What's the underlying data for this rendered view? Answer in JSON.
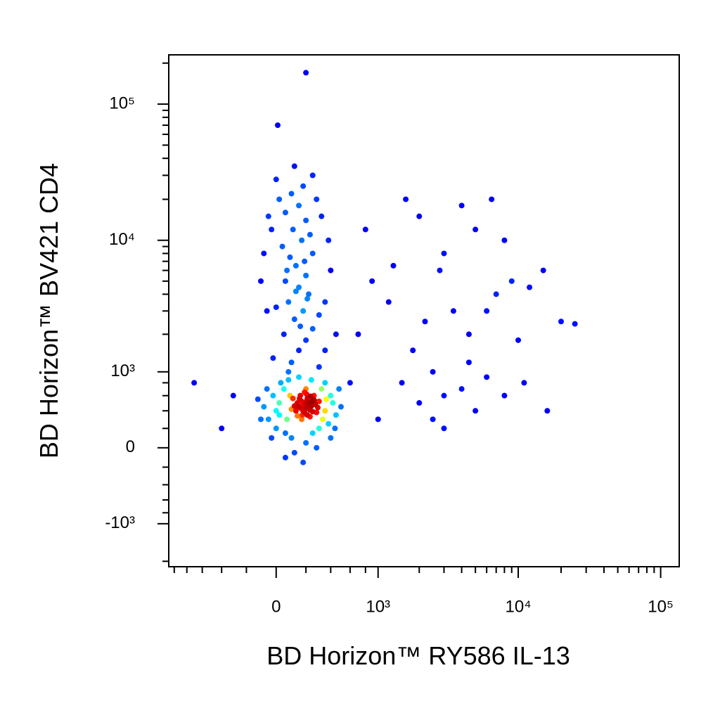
{
  "chart_data": {
    "type": "scatter",
    "x_label": "BD Horizon™ RY586 IL-13",
    "y_label": "BD Horizon™ BV421 CD4",
    "xscale": "biexponential",
    "yscale": "biexponential",
    "colormap": "jet",
    "xlim": [
      -1100,
      135000
    ],
    "ylim": [
      -2200,
      230000
    ],
    "xticks": [
      0,
      {
        "value": 1000,
        "label": "10³"
      },
      {
        "value": 10000,
        "label": "10⁴"
      },
      {
        "value": 100000,
        "label": "10⁵"
      }
    ],
    "yticks": [
      {
        "value": -1000,
        "label": "-10³"
      },
      0,
      {
        "value": 1000,
        "label": "10³"
      },
      {
        "value": 10000,
        "label": "10⁴"
      },
      {
        "value": 100000,
        "label": "10⁵"
      }
    ],
    "xminorticks": [
      -1000,
      -800,
      -600,
      -400,
      -200,
      200,
      400,
      600,
      800,
      2000,
      3000,
      4000,
      5000,
      6000,
      7000,
      8000,
      9000,
      20000,
      30000,
      40000,
      50000,
      60000,
      70000,
      80000,
      90000
    ],
    "yminorticks": [
      -2000,
      -800,
      -600,
      -400,
      -200,
      200,
      400,
      600,
      800,
      2000,
      3000,
      4000,
      5000,
      6000,
      7000,
      8000,
      9000,
      20000,
      30000,
      40000,
      50000,
      60000,
      70000,
      80000,
      90000,
      200000
    ],
    "x": [
      150,
      180,
      200,
      220,
      170,
      240,
      130,
      190,
      260,
      210,
      160,
      230,
      200,
      185,
      215,
      140,
      250,
      175,
      205,
      270,
      120,
      195,
      225,
      165,
      245,
      155,
      235,
      180,
      210,
      290,
      100,
      300,
      140,
      260,
      190,
      230,
      110,
      280,
      200,
      170,
      -50,
      0,
      20,
      50,
      -80,
      350,
      400,
      380,
      320,
      60,
      100,
      250,
      300,
      -20,
      30,
      420,
      450,
      80,
      350,
      150,
      -100,
      500,
      -30,
      200,
      120,
      280,
      60,
      180,
      400,
      0,
      -60,
      480,
      70,
      330,
      90,
      360,
      20,
      240,
      440,
      -120,
      100,
      150,
      200,
      50,
      250,
      120,
      180,
      80,
      220,
      150,
      300,
      0,
      60,
      200,
      130,
      90,
      250,
      40,
      170,
      110,
      200,
      60,
      150,
      20,
      100,
      180,
      -50,
      -80,
      -100,
      -60,
      350,
      400,
      450,
      380,
      320,
      280,
      0,
      250,
      -30,
      120,
      350,
      -20,
      80,
      300,
      160,
      210,
      130,
      70,
      190,
      230,
      1500,
      2000,
      3000,
      2500,
      4000,
      5000,
      6000,
      1800,
      2200,
      3500,
      4500,
      7000,
      9000,
      12000,
      3000,
      5000,
      2000,
      8000,
      15000,
      20000,
      1200,
      2800,
      6000,
      10000,
      4000,
      1600,
      3000,
      8000,
      16000,
      1300,
      2500,
      4500,
      6500,
      11000,
      25000,
      700,
      900,
      600,
      1000,
      800,
      200,
      10,
      -400,
      -700,
      -300
    ],
    "y": [
      450,
      470,
      430,
      500,
      520,
      460,
      400,
      380,
      540,
      560,
      600,
      410,
      480,
      455,
      445,
      500,
      390,
      350,
      620,
      480,
      460,
      510,
      470,
      430,
      520,
      560,
      590,
      400,
      350,
      440,
      420,
      520,
      340,
      600,
      650,
      330,
      560,
      380,
      700,
      300,
      300,
      200,
      500,
      700,
      450,
      400,
      600,
      250,
      700,
      150,
      100,
      150,
      200,
      600,
      800,
      500,
      350,
      850,
      800,
      900,
      300,
      450,
      100,
      50,
      -50,
      0,
      -100,
      -150,
      100,
      400,
      700,
      700,
      300,
      300,
      600,
      550,
      350,
      850,
      200,
      550,
      1200,
      1500,
      1800,
      2000,
      2200,
      2600,
      3000,
      3500,
      4000,
      4500,
      2800,
      3200,
      5000,
      5500,
      6500,
      7500,
      8000,
      9000,
      10000,
      12000,
      14000,
      16000,
      18000,
      20000,
      22000,
      25000,
      15000,
      8000,
      5000,
      3000,
      3500,
      6000,
      2000,
      10000,
      15000,
      20000,
      28000,
      30000,
      12000,
      35000,
      1500,
      1300,
      1000,
      1100,
      2300,
      3700,
      4200,
      6000,
      7000,
      11000,
      800,
      500,
      600,
      300,
      700,
      400,
      900,
      1500,
      2500,
      3000,
      2000,
      4000,
      5000,
      4500,
      8000,
      12000,
      15000,
      10000,
      6000,
      2500,
      3500,
      6000,
      3000,
      1800,
      18000,
      20000,
      200,
      600,
      400,
      6500,
      1000,
      1200,
      20000,
      800,
      2400,
      2000,
      5000,
      800,
      300,
      12000,
      170000,
      70000,
      200,
      800,
      600
    ]
  }
}
